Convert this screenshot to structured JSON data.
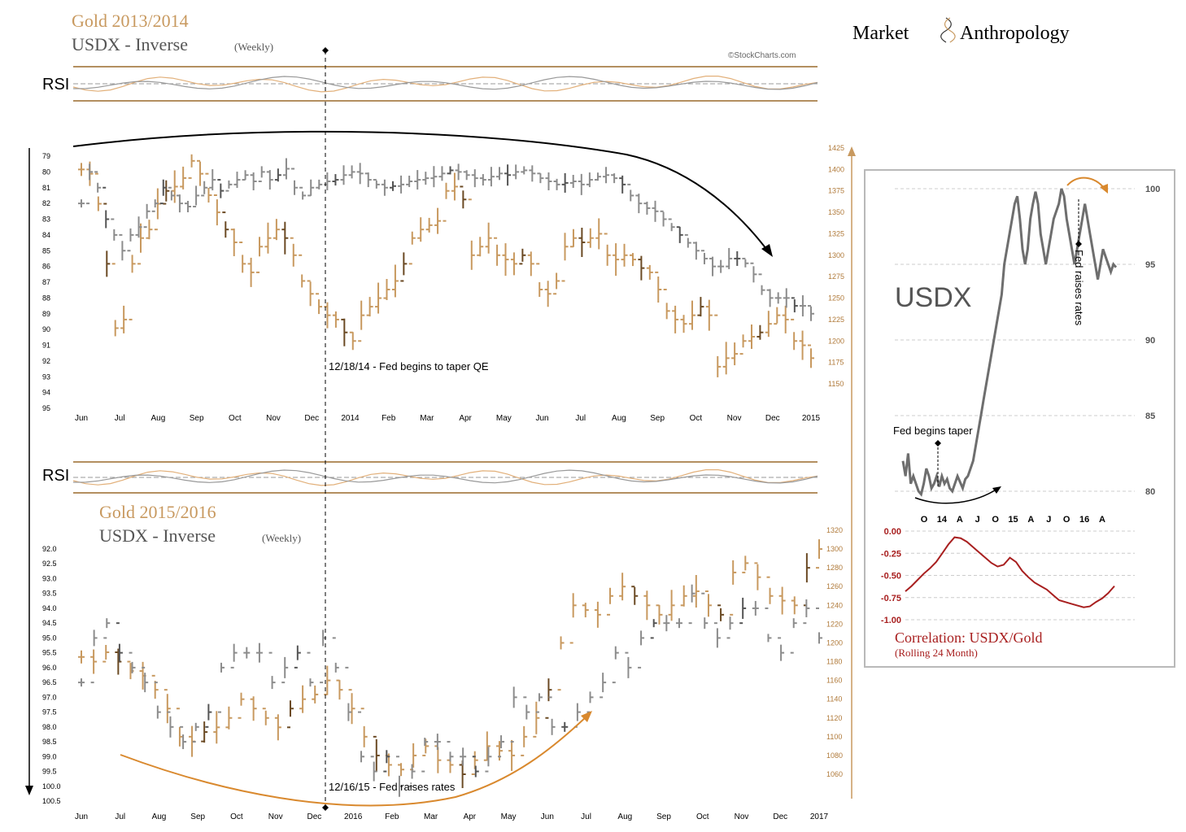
{
  "brand": {
    "left": "Market",
    "right": "Anthropology"
  },
  "watermark": "©StockCharts.com",
  "colors": {
    "gold": "#c8995f",
    "gold_dark": "#6b4a24",
    "usdx": "#8c8c8c",
    "usdx_line": "#6e6e6e",
    "accent_orange": "#d9892e",
    "correlation": "#a81f1f",
    "rsi_band": "#9a6a2c",
    "panel_border": "#b9b9b9"
  },
  "chart_data": [
    {
      "id": "gold-2013-2014",
      "type": "bar",
      "title": "Gold 2013/2014",
      "subtitle": "USDX - Inverse",
      "subtitle_small": "(Weekly)",
      "rsi_label": "RSI",
      "annotation": "12/18/14 - Fed begins to taper QE",
      "x_ticks": [
        "Jun",
        "Jul",
        "Aug",
        "Sep",
        "Oct",
        "Nov",
        "Dec",
        "2014",
        "Feb",
        "Mar",
        "Apr",
        "May",
        "Jun",
        "Jul",
        "Aug",
        "Sep",
        "Oct",
        "Nov",
        "Dec",
        "2015"
      ],
      "left_axis": {
        "label": "",
        "ticks": [
          79,
          80,
          81,
          82,
          83,
          84,
          85,
          86,
          87,
          88,
          89,
          90,
          91,
          92,
          93,
          94,
          95
        ],
        "inverted": true
      },
      "right_axis": {
        "label": "",
        "ticks": [
          1425,
          1400,
          1375,
          1350,
          1325,
          1300,
          1275,
          1250,
          1225,
          1200,
          1175,
          1150
        ]
      },
      "series": [
        {
          "axis": "right",
          "values": [
            1400,
            1395,
            1360,
            1290,
            1215,
            1225,
            1290,
            1320,
            1330,
            1360,
            1375,
            1380,
            1390,
            1410,
            1395,
            1370,
            1350,
            1330,
            1315,
            1290,
            1280,
            1310,
            1320,
            1330,
            1320,
            1300,
            1270,
            1255,
            1240,
            1230,
            1225,
            1210,
            1200,
            1230,
            1240,
            1250,
            1260,
            1270,
            1290,
            1320,
            1330,
            1335,
            1340,
            1375,
            1380,
            1365,
            1300,
            1310,
            1320,
            1300,
            1295,
            1290,
            1300,
            1290,
            1260,
            1255,
            1270,
            1310,
            1320,
            1315,
            1320,
            1325,
            1300,
            1295,
            1300,
            1295,
            1285,
            1280,
            1260,
            1235,
            1225,
            1220,
            1230,
            1240,
            1230,
            1170,
            1180,
            1185,
            1200,
            1205,
            1210,
            1220,
            1230,
            1225,
            1200,
            1195,
            1180
          ]
        },
        {
          "axis": "left",
          "values": [
            82,
            80,
            81,
            83,
            84,
            85,
            84,
            83.5,
            82.5,
            82,
            81,
            81.5,
            82,
            82.2,
            81.5,
            81,
            80.5,
            81.2,
            80.8,
            80.5,
            80.2,
            80.6,
            80,
            80.5,
            80.2,
            79.8,
            81,
            81.5,
            81,
            80.8,
            80.6,
            80.5,
            80.2,
            80,
            80.1,
            80.5,
            80.8,
            81,
            80.9,
            80.8,
            80.6,
            80.5,
            80.4,
            80.3,
            80.1,
            79.9,
            80,
            80.2,
            80.4,
            80.5,
            80.3,
            80.1,
            80.2,
            80,
            79.9,
            80.1,
            80.4,
            80.6,
            80.8,
            80.7,
            80.6,
            80.8,
            80.5,
            80.3,
            80.2,
            80.4,
            80.8,
            81.5,
            82,
            82.3,
            82.5,
            83,
            83.5,
            84,
            84.5,
            85,
            85.5,
            86,
            86,
            85.5,
            85.5,
            85.8,
            86.5,
            87.5,
            88,
            88,
            88,
            88.5,
            88.5,
            89
          ]
        }
      ],
      "lines": [
        {
          "name": "",
          "values": []
        }
      ]
    },
    {
      "id": "gold-2015-2016",
      "type": "bar",
      "title": "Gold 2015/2016",
      "subtitle": "USDX - Inverse",
      "subtitle_small": "(Weekly)",
      "rsi_label": "RSI",
      "annotation": "12/16/15 - Fed raises rates",
      "x_ticks": [
        "Jun",
        "Jul",
        "Aug",
        "Sep",
        "Oct",
        "Nov",
        "Dec",
        "2016",
        "Feb",
        "Mar",
        "Apr",
        "May",
        "Jun",
        "Jul",
        "Aug",
        "Sep",
        "Oct",
        "Nov",
        "Dec",
        "2017"
      ],
      "left_axis": {
        "label": "",
        "ticks": [
          "92.0",
          "92.5",
          "93.0",
          "93.5",
          "94.0",
          "94.5",
          "95.0",
          "95.5",
          "96.0",
          "96.5",
          "97.0",
          "97.5",
          "98.0",
          "98.5",
          "99.0",
          "99.5",
          "100.0",
          "100.5"
        ],
        "inverted": true
      },
      "right_axis": {
        "label": "",
        "ticks": [
          1320,
          1300,
          1280,
          1260,
          1240,
          1220,
          1200,
          1180,
          1160,
          1140,
          1120,
          1100,
          1080,
          1060
        ]
      },
      "series": [
        {
          "axis": "right",
          "values": [
            1185,
            1180,
            1190,
            1180,
            1170,
            1165,
            1150,
            1130,
            1100,
            1095,
            1105,
            1110,
            1120,
            1140,
            1130,
            1120,
            1110,
            1130,
            1140,
            1145,
            1160,
            1150,
            1130,
            1100,
            1080,
            1070,
            1065,
            1080,
            1090,
            1075,
            1070,
            1060,
            1075,
            1090,
            1085,
            1080,
            1100,
            1120,
            1150,
            1200,
            1240,
            1235,
            1230,
            1250,
            1260,
            1250,
            1240,
            1230,
            1240,
            1250,
            1255,
            1240,
            1230,
            1275,
            1285,
            1270,
            1250,
            1245,
            1240,
            1280,
            1300
          ]
        },
        {
          "axis": "left",
          "values": [
            96.5,
            95,
            94.5,
            95.5,
            96,
            96.5,
            97.5,
            98,
            98.5,
            98,
            97.5,
            96,
            95.5,
            95.5,
            95.5,
            96.5,
            96,
            95.5,
            96.5,
            95,
            96,
            97.5,
            99,
            99.5,
            99,
            100,
            99.5,
            98.5,
            98.5,
            99,
            99,
            99.5,
            99,
            98.5,
            97,
            97.5,
            97,
            98,
            98,
            97.5,
            97,
            96.5,
            95.5,
            96,
            95,
            94.5,
            94.5,
            94.5,
            93.5,
            94.5,
            95,
            94.5,
            94,
            94,
            95,
            95.5,
            94.5,
            94,
            95
          ]
        }
      ]
    },
    {
      "id": "usdx-inset",
      "type": "line",
      "title": "USDX",
      "annotation_taper": "Fed begins taper",
      "annotation_rates": "Fed raises rates",
      "x_ticks": [
        "O",
        "14",
        "A",
        "J",
        "O",
        "15",
        "A",
        "J",
        "O",
        "16",
        "A"
      ],
      "y_ticks": [
        100,
        95,
        90,
        85,
        80
      ],
      "ylim": [
        79,
        101
      ],
      "values": [
        82,
        81,
        82.5,
        80.5,
        81,
        80.5,
        80,
        79.8,
        80.5,
        81.5,
        81,
        80.2,
        80.5,
        81,
        80.3,
        81,
        80.5,
        80.8,
        80.2,
        80,
        80.5,
        81,
        80.6,
        80.2,
        80.8,
        81,
        81.5,
        82,
        83,
        84,
        85,
        86,
        87,
        88,
        89,
        90,
        91,
        92,
        93,
        95,
        96,
        97,
        98,
        99,
        99.5,
        98,
        96,
        95,
        96,
        98,
        99,
        99.8,
        99,
        97,
        96,
        95,
        96,
        97,
        98,
        98.5,
        99,
        100,
        99.5,
        98,
        97,
        96,
        95,
        96,
        97,
        98,
        99,
        98,
        97,
        96,
        95,
        94,
        95,
        96,
        95.5,
        95,
        94.5,
        95,
        94.8
      ]
    },
    {
      "id": "correlation",
      "type": "line",
      "title": "Correlation: USDX/Gold",
      "subtitle": "(Rolling 24 Month)",
      "y_ticks": [
        "0.00",
        "-0.25",
        "-0.50",
        "-0.75",
        "-1.00"
      ],
      "ylim": [
        -1.0,
        0.0
      ],
      "values": [
        -0.68,
        -0.62,
        -0.55,
        -0.48,
        -0.42,
        -0.35,
        -0.25,
        -0.15,
        -0.07,
        -0.08,
        -0.12,
        -0.18,
        -0.24,
        -0.3,
        -0.36,
        -0.4,
        -0.38,
        -0.3,
        -0.35,
        -0.45,
        -0.52,
        -0.58,
        -0.62,
        -0.66,
        -0.72,
        -0.78,
        -0.8,
        -0.82,
        -0.84,
        -0.86,
        -0.85,
        -0.8,
        -0.76,
        -0.7,
        -0.62
      ]
    }
  ]
}
